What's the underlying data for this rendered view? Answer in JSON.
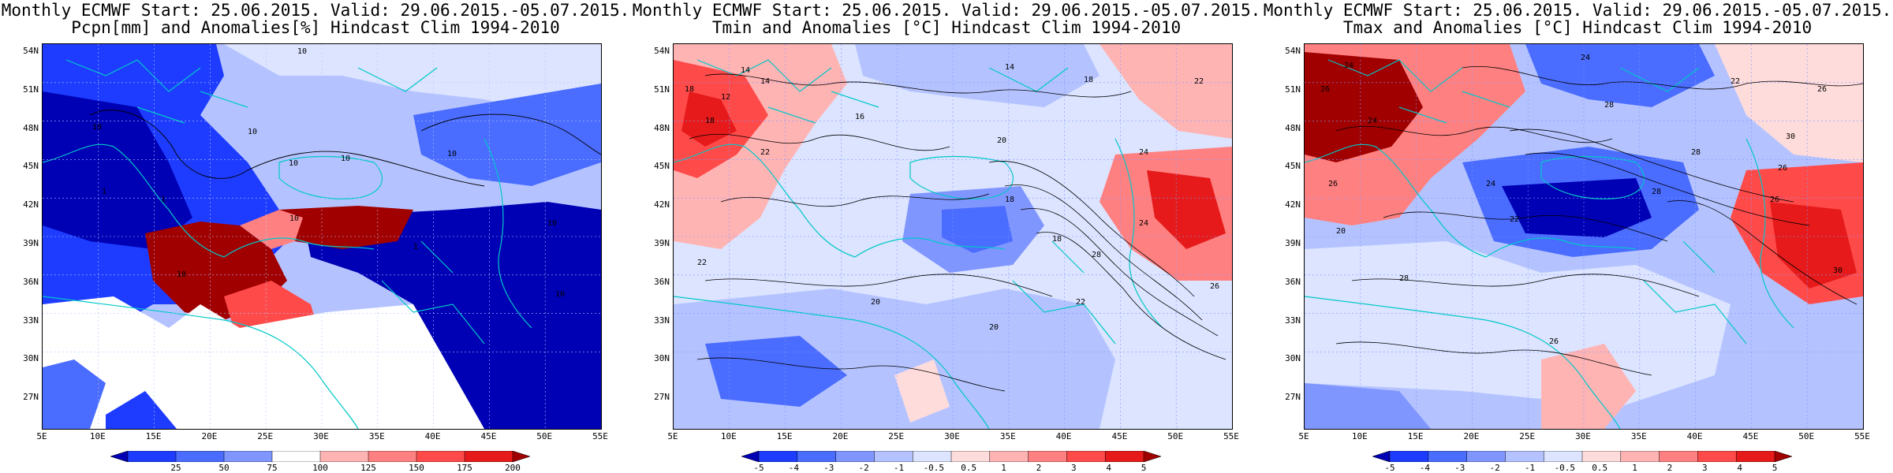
{
  "panels": [
    {
      "id": "pcpn",
      "title_line1": "Monthly ECMWF Start: 25.06.2015. Valid: 29.06.2015.-05.07.2015.",
      "title_line2": "Pcpn[mm] and Anomalies[%] Hindcast Clim 1994-2010",
      "colorbar_labels": [
        "25",
        "50",
        "75",
        "100",
        "125",
        "150",
        "175",
        "200"
      ],
      "contour_labels": [
        "10",
        "10",
        "10",
        "10",
        "10",
        "10",
        "10",
        "10",
        "1",
        "1",
        "1",
        "10",
        "10"
      ]
    },
    {
      "id": "tmin",
      "title_line1": "Monthly ECMWF Start: 25.06.2015. Valid: 29.06.2015.-05.07.2015.",
      "title_line2": "Tmin and Anomalies [°C] Hindcast Clim 1994-2010",
      "colorbar_labels": [
        "-5",
        "-4",
        "-3",
        "-2",
        "-1",
        "-0.5",
        "0.5",
        "1",
        "2",
        "3",
        "4",
        "5"
      ],
      "contour_labels": [
        "14",
        "14",
        "18",
        "18",
        "14",
        "22",
        "12",
        "16",
        "18",
        "20",
        "22",
        "18",
        "24",
        "22",
        "20",
        "18",
        "20",
        "22",
        "24",
        "26",
        "28"
      ]
    },
    {
      "id": "tmax",
      "title_line1": "Monthly ECMWF Start: 25.06.2015. Valid: 29.06.2015.-05.07.2015.",
      "title_line2": "Tmax and Anomalies [°C] Hindcast Clim 1994-2010",
      "colorbar_labels": [
        "-5",
        "-4",
        "-3",
        "-2",
        "-1",
        "-0.5",
        "0.5",
        "1",
        "2",
        "3",
        "4",
        "5"
      ],
      "contour_labels": [
        "24",
        "24",
        "26",
        "22",
        "26",
        "24",
        "28",
        "30",
        "28",
        "26",
        "24",
        "28",
        "22",
        "20",
        "26",
        "30",
        "28",
        "26",
        "26"
      ]
    }
  ],
  "lat_ticks": [
    "54N",
    "51N",
    "48N",
    "45N",
    "42N",
    "39N",
    "36N",
    "33N",
    "30N",
    "27N"
  ],
  "lon_ticks": [
    "5E",
    "10E",
    "15E",
    "20E",
    "25E",
    "30E",
    "35E",
    "40E",
    "45E",
    "50E",
    "55E"
  ],
  "colors": {
    "scale_neg": [
      "#0000b4",
      "#1e3cff",
      "#4a6cff",
      "#8096ff",
      "#b4c3ff",
      "#dce4ff"
    ],
    "scale_pos": [
      "#ffdcdc",
      "#ffb4b4",
      "#ff8080",
      "#ff4a4a",
      "#e61a1a",
      "#a00000"
    ],
    "coast": "#00c8c8",
    "contour": "#000000"
  }
}
